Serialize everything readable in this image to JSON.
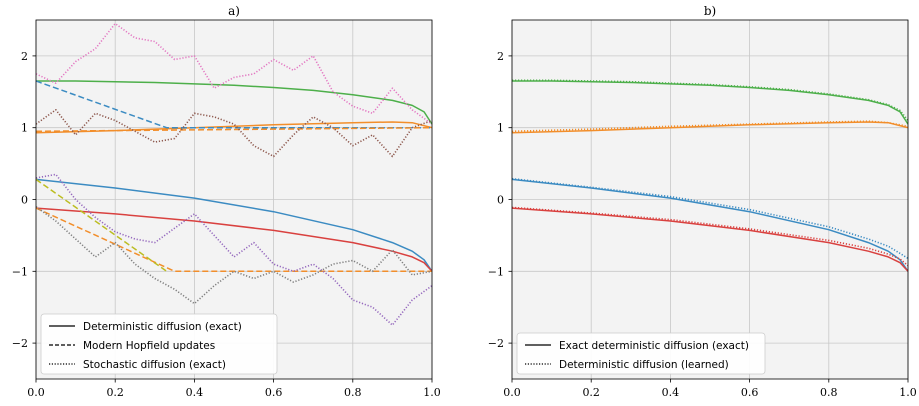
{
  "chart_data": [
    {
      "type": "line",
      "title": "a)",
      "xlabel": "",
      "ylabel": "",
      "xlim": [
        0.0,
        1.0
      ],
      "ylim": [
        -2.5,
        2.5
      ],
      "xticks": [
        0.0,
        0.2,
        0.4,
        0.6,
        0.8,
        1.0
      ],
      "xtick_labels": [
        "0.0",
        "0.2",
        "0.4",
        "0.6",
        "0.8",
        "1.0"
      ],
      "yticks": [
        -2,
        -1,
        0,
        1,
        2
      ],
      "ytick_labels": [
        "−2",
        "−1",
        "0",
        "1",
        "2"
      ],
      "grid": true,
      "background": "#f3f3f3",
      "legend_placement": "lower-left",
      "legend": [
        {
          "label": "Deterministic diffusion (exact)",
          "style": "solid"
        },
        {
          "label": "Modern Hopfield updates",
          "style": "dashed"
        },
        {
          "label": "Stochastic diffusion (exact)",
          "style": "dotted"
        }
      ],
      "series": [
        {
          "style": "solid",
          "color": "#4daf4a",
          "x": [
            0,
            0.1,
            0.2,
            0.3,
            0.4,
            0.5,
            0.6,
            0.7,
            0.8,
            0.9,
            0.95,
            0.98,
            1.0
          ],
          "y": [
            1.65,
            1.65,
            1.64,
            1.63,
            1.61,
            1.59,
            1.56,
            1.52,
            1.46,
            1.38,
            1.31,
            1.22,
            1.05
          ]
        },
        {
          "style": "solid",
          "color": "#f28e2b",
          "x": [
            0,
            0.2,
            0.4,
            0.6,
            0.8,
            0.9,
            0.95,
            1.0
          ],
          "y": [
            0.93,
            0.96,
            1.0,
            1.04,
            1.07,
            1.08,
            1.07,
            1.0
          ]
        },
        {
          "style": "solid",
          "color": "#3b8bc2",
          "x": [
            0,
            0.2,
            0.4,
            0.6,
            0.8,
            0.9,
            0.95,
            0.98,
            1.0
          ],
          "y": [
            0.28,
            0.16,
            0.02,
            -0.17,
            -0.42,
            -0.6,
            -0.72,
            -0.84,
            -1.0
          ]
        },
        {
          "style": "solid",
          "color": "#d9413f",
          "x": [
            0,
            0.2,
            0.4,
            0.6,
            0.8,
            0.9,
            0.95,
            0.98,
            1.0
          ],
          "y": [
            -0.12,
            -0.2,
            -0.3,
            -0.43,
            -0.6,
            -0.72,
            -0.8,
            -0.88,
            -1.0
          ]
        },
        {
          "style": "dashed",
          "color": "#3b8bc2",
          "x": [
            0.0,
            0.33,
            1.0
          ],
          "y": [
            1.65,
            1.0,
            1.0
          ]
        },
        {
          "style": "dashed",
          "color": "#f28e2b",
          "x": [
            0.0,
            1.0
          ],
          "y": [
            0.95,
            1.0
          ]
        },
        {
          "style": "dashed",
          "color": "#f28e2b",
          "x": [
            0.0,
            0.35,
            1.0
          ],
          "y": [
            -0.12,
            -1.0,
            -1.0
          ]
        },
        {
          "style": "dashed",
          "color": "#bcbd22",
          "x": [
            0.0,
            0.33
          ],
          "y": [
            0.28,
            -1.0
          ]
        },
        {
          "style": "dotted",
          "color": "#e377c2",
          "x": [
            0,
            0.05,
            0.1,
            0.15,
            0.2,
            0.25,
            0.3,
            0.35,
            0.4,
            0.45,
            0.5,
            0.55,
            0.6,
            0.65,
            0.7,
            0.75,
            0.8,
            0.85,
            0.9,
            0.95,
            1.0
          ],
          "y": [
            1.75,
            1.62,
            1.92,
            2.1,
            2.45,
            2.25,
            2.2,
            1.95,
            2.0,
            1.55,
            1.7,
            1.75,
            1.95,
            1.8,
            2.0,
            1.5,
            1.3,
            1.2,
            1.55,
            1.25,
            1.05
          ]
        },
        {
          "style": "dotted",
          "color": "#8c564b",
          "x": [
            0,
            0.05,
            0.1,
            0.15,
            0.2,
            0.25,
            0.3,
            0.35,
            0.4,
            0.45,
            0.5,
            0.55,
            0.6,
            0.65,
            0.7,
            0.75,
            0.8,
            0.85,
            0.9,
            0.95,
            1.0
          ],
          "y": [
            1.05,
            1.25,
            0.9,
            1.2,
            1.1,
            0.95,
            0.8,
            0.85,
            1.2,
            1.15,
            1.05,
            0.75,
            0.6,
            0.9,
            1.15,
            1.0,
            0.75,
            0.9,
            0.6,
            1.0,
            1.1
          ]
        },
        {
          "style": "dotted",
          "color": "#9467bd",
          "x": [
            0,
            0.05,
            0.1,
            0.15,
            0.2,
            0.25,
            0.3,
            0.35,
            0.4,
            0.45,
            0.5,
            0.55,
            0.6,
            0.65,
            0.7,
            0.75,
            0.8,
            0.85,
            0.9,
            0.95,
            1.0
          ],
          "y": [
            0.3,
            0.35,
            0.0,
            -0.25,
            -0.45,
            -0.55,
            -0.6,
            -0.4,
            -0.2,
            -0.5,
            -0.8,
            -0.6,
            -0.9,
            -1.0,
            -0.9,
            -1.1,
            -1.4,
            -1.5,
            -1.75,
            -1.4,
            -1.2
          ]
        },
        {
          "style": "dotted",
          "color": "#7f7f7f",
          "x": [
            0,
            0.05,
            0.1,
            0.15,
            0.2,
            0.25,
            0.3,
            0.35,
            0.4,
            0.45,
            0.5,
            0.55,
            0.6,
            0.65,
            0.7,
            0.75,
            0.8,
            0.85,
            0.9,
            0.95,
            1.0
          ],
          "y": [
            -0.1,
            -0.3,
            -0.55,
            -0.8,
            -0.6,
            -0.9,
            -1.1,
            -1.25,
            -1.45,
            -1.2,
            -1.0,
            -1.1,
            -1.0,
            -1.15,
            -1.05,
            -0.9,
            -0.85,
            -1.0,
            -0.7,
            -1.05,
            -1.0
          ]
        }
      ]
    },
    {
      "type": "line",
      "title": "b)",
      "xlabel": "",
      "ylabel": "",
      "xlim": [
        0.0,
        1.0
      ],
      "ylim": [
        -2.5,
        2.5
      ],
      "xticks": [
        0.0,
        0.2,
        0.4,
        0.6,
        0.8,
        1.0
      ],
      "xtick_labels": [
        "0.0",
        "0.2",
        "0.4",
        "0.6",
        "0.8",
        "1.0"
      ],
      "yticks": [
        -2,
        -1,
        0,
        1,
        2
      ],
      "ytick_labels": [
        "−2",
        "−1",
        "0",
        "1",
        "2"
      ],
      "grid": true,
      "background": "#f3f3f3",
      "legend_placement": "lower-left",
      "legend": [
        {
          "label": "Exact deterministic diffusion (exact)",
          "style": "solid"
        },
        {
          "label": "Deterministic diffusion (learned)",
          "style": "dotted"
        }
      ],
      "series": [
        {
          "style": "solid",
          "color": "#4daf4a",
          "x": [
            0,
            0.1,
            0.2,
            0.3,
            0.4,
            0.5,
            0.6,
            0.7,
            0.8,
            0.9,
            0.95,
            0.98,
            1.0
          ],
          "y": [
            1.65,
            1.65,
            1.64,
            1.63,
            1.61,
            1.59,
            1.56,
            1.52,
            1.46,
            1.38,
            1.31,
            1.22,
            1.05
          ]
        },
        {
          "style": "dotted",
          "color": "#4daf4a",
          "x": [
            0,
            0.1,
            0.2,
            0.3,
            0.4,
            0.5,
            0.6,
            0.7,
            0.8,
            0.9,
            0.95,
            0.98,
            1.0
          ],
          "y": [
            1.66,
            1.66,
            1.65,
            1.64,
            1.62,
            1.6,
            1.57,
            1.53,
            1.47,
            1.39,
            1.32,
            1.24,
            1.1
          ]
        },
        {
          "style": "solid",
          "color": "#f28e2b",
          "x": [
            0,
            0.2,
            0.4,
            0.6,
            0.8,
            0.9,
            0.95,
            1.0
          ],
          "y": [
            0.93,
            0.96,
            1.0,
            1.04,
            1.07,
            1.08,
            1.07,
            1.0
          ]
        },
        {
          "style": "dotted",
          "color": "#f28e2b",
          "x": [
            0,
            0.2,
            0.4,
            0.6,
            0.8,
            0.9,
            0.95,
            1.0
          ],
          "y": [
            0.95,
            0.98,
            1.02,
            1.05,
            1.08,
            1.09,
            1.07,
            1.02
          ]
        },
        {
          "style": "solid",
          "color": "#3b8bc2",
          "x": [
            0,
            0.2,
            0.4,
            0.6,
            0.8,
            0.9,
            0.95,
            0.98,
            1.0
          ],
          "y": [
            0.28,
            0.16,
            0.02,
            -0.17,
            -0.42,
            -0.6,
            -0.72,
            -0.84,
            -1.0
          ]
        },
        {
          "style": "dotted",
          "color": "#3b8bc2",
          "x": [
            0,
            0.2,
            0.4,
            0.6,
            0.8,
            0.9,
            0.95,
            0.98,
            1.0
          ],
          "y": [
            0.29,
            0.17,
            0.04,
            -0.14,
            -0.38,
            -0.55,
            -0.65,
            -0.75,
            -0.82
          ]
        },
        {
          "style": "solid",
          "color": "#d9413f",
          "x": [
            0,
            0.2,
            0.4,
            0.6,
            0.8,
            0.9,
            0.95,
            0.98,
            1.0
          ],
          "y": [
            -0.12,
            -0.2,
            -0.3,
            -0.43,
            -0.6,
            -0.72,
            -0.8,
            -0.88,
            -1.0
          ]
        },
        {
          "style": "dotted",
          "color": "#d9413f",
          "x": [
            0,
            0.2,
            0.4,
            0.6,
            0.8,
            0.9,
            0.95,
            0.98,
            1.0
          ],
          "y": [
            -0.11,
            -0.19,
            -0.28,
            -0.41,
            -0.57,
            -0.68,
            -0.76,
            -0.83,
            -0.92
          ]
        }
      ]
    }
  ]
}
